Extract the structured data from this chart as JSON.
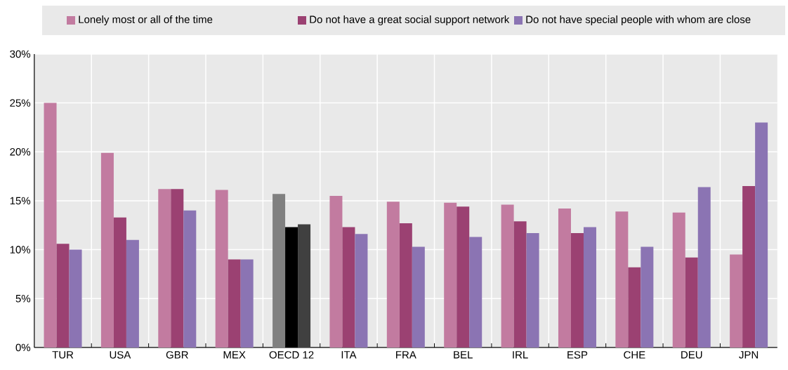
{
  "chart_data": {
    "type": "bar",
    "categories": [
      "TUR",
      "USA",
      "GBR",
      "MEX",
      "OECD 12",
      "ITA",
      "FRA",
      "BEL",
      "IRL",
      "ESP",
      "CHE",
      "DEU",
      "JPN"
    ],
    "series": [
      {
        "name": "Lonely most or all of the time",
        "color": "#c27ba0",
        "colors": [
          "#c27ba0",
          "#c27ba0",
          "#c27ba0",
          "#c27ba0",
          "#808080",
          "#c27ba0",
          "#c27ba0",
          "#c27ba0",
          "#c27ba0",
          "#c27ba0",
          "#c27ba0",
          "#c27ba0",
          "#c27ba0"
        ],
        "values": [
          25.0,
          19.9,
          16.2,
          16.1,
          15.7,
          15.5,
          14.9,
          14.8,
          14.6,
          14.2,
          13.9,
          13.8,
          9.5
        ]
      },
      {
        "name": "Do not have a great social support network",
        "color": "#9b4172",
        "colors": [
          "#9b4172",
          "#9b4172",
          "#9b4172",
          "#9b4172",
          "#000000",
          "#9b4172",
          "#9b4172",
          "#9b4172",
          "#9b4172",
          "#9b4172",
          "#9b4172",
          "#9b4172",
          "#9b4172"
        ],
        "values": [
          10.6,
          13.3,
          16.2,
          9.0,
          12.3,
          12.3,
          12.7,
          14.4,
          12.9,
          11.7,
          8.2,
          9.2,
          16.5
        ]
      },
      {
        "name": "Do not have special people with whom are close",
        "color": "#8b74b3",
        "colors": [
          "#8b74b3",
          "#8b74b3",
          "#8b74b3",
          "#8b74b3",
          "#404040",
          "#8b74b3",
          "#8b74b3",
          "#8b74b3",
          "#8b74b3",
          "#8b74b3",
          "#8b74b3",
          "#8b74b3",
          "#8b74b3"
        ],
        "values": [
          10.0,
          11.0,
          14.0,
          9.0,
          12.6,
          11.6,
          10.3,
          11.3,
          11.7,
          12.3,
          10.3,
          16.4,
          23.0
        ]
      }
    ],
    "ylim": [
      0,
      30
    ],
    "yticks": [
      {
        "value": 0,
        "label": "0%"
      },
      {
        "value": 5,
        "label": "5%"
      },
      {
        "value": 10,
        "label": "10%"
      },
      {
        "value": 15,
        "label": "15%"
      },
      {
        "value": 20,
        "label": "20%"
      },
      {
        "value": 25,
        "label": "25%"
      },
      {
        "value": 30,
        "label": "30%"
      }
    ],
    "grid": true,
    "legend": "top"
  }
}
